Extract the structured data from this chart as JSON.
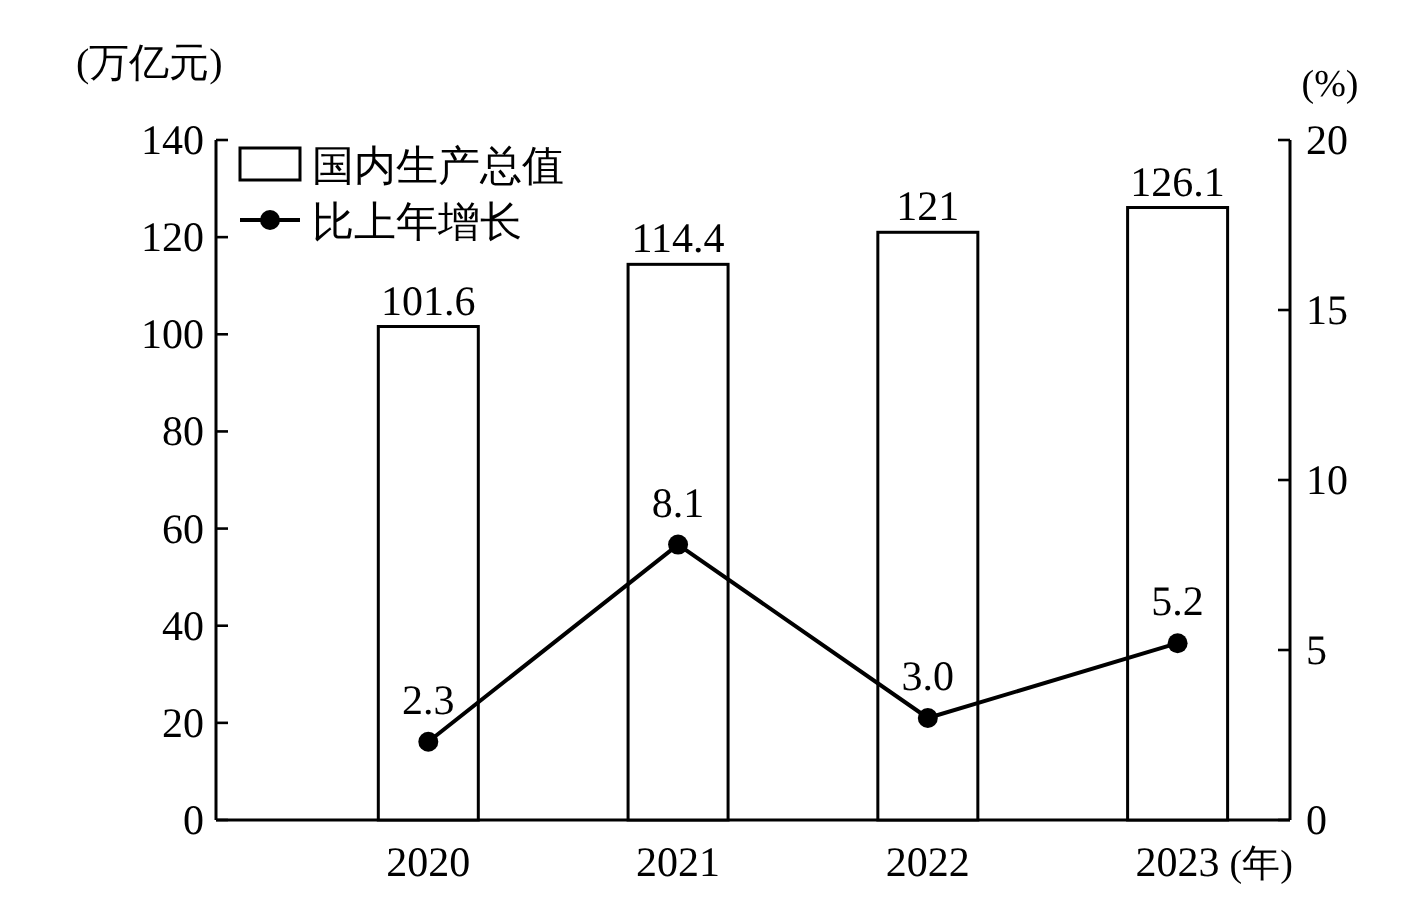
{
  "chart_data": {
    "type": "bar",
    "categories": [
      "2020",
      "2021",
      "2022",
      "2023"
    ],
    "xlabel": "(年)",
    "ylabel": "(万亿元)",
    "y2label": "(%)",
    "ylim": [
      0,
      140
    ],
    "yticks": [
      0,
      20,
      40,
      60,
      80,
      100,
      120,
      140
    ],
    "y2lim": [
      0,
      20
    ],
    "y2ticks": [
      0,
      5,
      10,
      15,
      20
    ],
    "legend": "top left",
    "marker": "circle",
    "series": [
      {
        "name": "国内生产总值",
        "color": "#ffffff",
        "values": [
          101.6,
          114.4,
          121,
          126.1
        ],
        "value_labels": [
          "101.6",
          "114.4",
          "121",
          "126.1"
        ]
      },
      {
        "name": "比上年增长",
        "type": "line",
        "axis": "y2",
        "color": "#000000",
        "values": [
          2.3,
          8.1,
          3.0,
          5.2
        ],
        "value_labels": [
          "2.3",
          "8.1",
          "3.0",
          "5.2"
        ]
      }
    ]
  }
}
